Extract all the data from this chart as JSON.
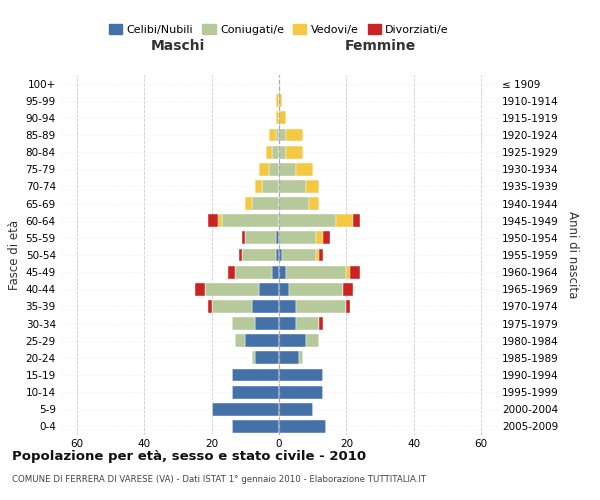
{
  "age_groups": [
    "0-4",
    "5-9",
    "10-14",
    "15-19",
    "20-24",
    "25-29",
    "30-34",
    "35-39",
    "40-44",
    "45-49",
    "50-54",
    "55-59",
    "60-64",
    "65-69",
    "70-74",
    "75-79",
    "80-84",
    "85-89",
    "90-94",
    "95-99",
    "100+"
  ],
  "birth_years": [
    "2005-2009",
    "2000-2004",
    "1995-1999",
    "1990-1994",
    "1985-1989",
    "1980-1984",
    "1975-1979",
    "1970-1974",
    "1965-1969",
    "1960-1964",
    "1955-1959",
    "1950-1954",
    "1945-1949",
    "1940-1944",
    "1935-1939",
    "1930-1934",
    "1925-1929",
    "1920-1924",
    "1915-1919",
    "1910-1914",
    "≤ 1909"
  ],
  "colors": {
    "celibi": "#4472a8",
    "coniugati": "#b5c99a",
    "vedovi": "#f5c842",
    "divorziati": "#cc2222"
  },
  "legend_labels": [
    "Celibi/Nubili",
    "Coniugati/e",
    "Vedovi/e",
    "Divorziati/e"
  ],
  "maschi": {
    "celibi": [
      14,
      20,
      14,
      14,
      7,
      10,
      7,
      8,
      6,
      2,
      1,
      1,
      0,
      0,
      0,
      0,
      0,
      0,
      0,
      0,
      0
    ],
    "coniugati": [
      0,
      0,
      0,
      0,
      1,
      3,
      7,
      12,
      16,
      11,
      10,
      9,
      17,
      8,
      5,
      3,
      2,
      1,
      0,
      0,
      0
    ],
    "vedovi": [
      0,
      0,
      0,
      0,
      0,
      0,
      0,
      0,
      0,
      0,
      0,
      0,
      1,
      2,
      2,
      3,
      2,
      2,
      1,
      1,
      0
    ],
    "divorziati": [
      0,
      0,
      0,
      0,
      0,
      0,
      0,
      1,
      3,
      2,
      1,
      1,
      3,
      0,
      0,
      0,
      0,
      0,
      0,
      0,
      0
    ]
  },
  "femmine": {
    "nubili": [
      14,
      10,
      13,
      13,
      6,
      8,
      5,
      5,
      3,
      2,
      1,
      0,
      0,
      0,
      0,
      0,
      0,
      0,
      0,
      0,
      0
    ],
    "coniugate": [
      0,
      0,
      0,
      0,
      1,
      4,
      7,
      15,
      16,
      18,
      10,
      11,
      17,
      9,
      8,
      5,
      2,
      2,
      0,
      0,
      0
    ],
    "vedove": [
      0,
      0,
      0,
      0,
      0,
      0,
      0,
      0,
      0,
      1,
      1,
      2,
      5,
      3,
      4,
      5,
      5,
      5,
      2,
      1,
      0
    ],
    "divorziate": [
      0,
      0,
      0,
      0,
      0,
      0,
      1,
      1,
      3,
      3,
      1,
      2,
      2,
      0,
      0,
      0,
      0,
      0,
      0,
      0,
      0
    ]
  },
  "xlim": [
    -65,
    65
  ],
  "xticks": [
    -60,
    -40,
    -20,
    0,
    20,
    40,
    60
  ],
  "xtick_labels": [
    "60",
    "40",
    "20",
    "0",
    "20",
    "40",
    "60"
  ],
  "title": "Popolazione per età, sesso e stato civile - 2010",
  "subtitle": "COMUNE DI FERRERA DI VARESE (VA) - Dati ISTAT 1° gennaio 2010 - Elaborazione TUTTITALIA.IT",
  "ylabel_left": "Fasce di età",
  "ylabel_right": "Anni di nascita",
  "label_maschi": "Maschi",
  "label_femmine": "Femmine",
  "background_color": "#ffffff",
  "grid_color": "#cccccc"
}
